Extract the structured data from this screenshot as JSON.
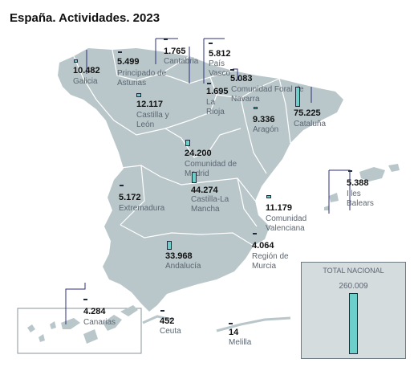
{
  "title": "España. Actividades. 2023",
  "colors": {
    "land": "#b9c7cb",
    "border": "#ffffff",
    "bar": "#6ccfc9",
    "leader": "#2c2f7a",
    "text": "#5c6670"
  },
  "regions": [
    {
      "name": "Galicia",
      "value": "10.482"
    },
    {
      "name": "Principado de Asturias",
      "value": "5.499"
    },
    {
      "name": "Cantabria",
      "value": "1.765"
    },
    {
      "name": "País Vasco",
      "value": "5.812"
    },
    {
      "name": "Comunidad Foral de Navarra",
      "value": "5.083"
    },
    {
      "name": "La Rioja",
      "value": "1.695"
    },
    {
      "name": "Castilla y León",
      "value": "12.117"
    },
    {
      "name": "Aragón",
      "value": "9.336"
    },
    {
      "name": "Cataluña",
      "value": "75.225"
    },
    {
      "name": "Comunidad de Madrid",
      "value": "24.200"
    },
    {
      "name": "Castilla-La Mancha",
      "value": "44.274"
    },
    {
      "name": "Extremadura",
      "value": "5.172"
    },
    {
      "name": "Comunidad Valenciana",
      "value": "11.179"
    },
    {
      "name": "Illes Balears",
      "value": "5.388"
    },
    {
      "name": "Región de Murcia",
      "value": "4.064"
    },
    {
      "name": "Andalucía",
      "value": "33.968"
    },
    {
      "name": "Canarias",
      "value": "4.284"
    },
    {
      "name": "Ceuta",
      "value": "452"
    },
    {
      "name": "Melilla",
      "value": "14"
    }
  ],
  "total": {
    "label": "TOTAL NACIONAL",
    "value": "260.009"
  }
}
